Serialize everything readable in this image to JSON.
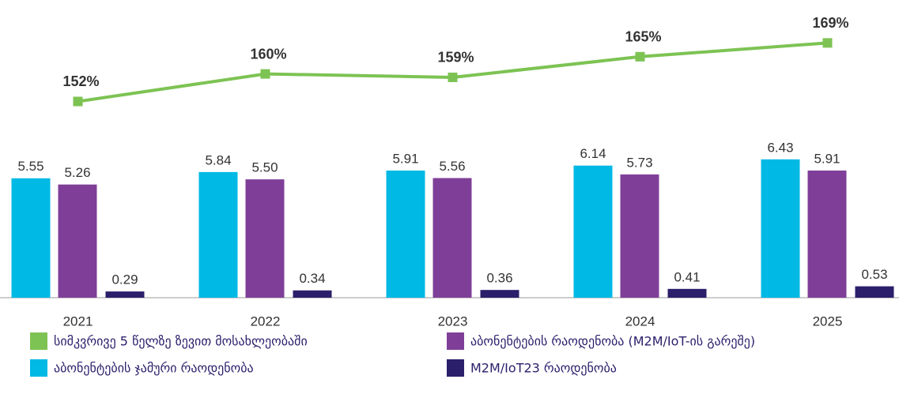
{
  "chart_data": {
    "type": "bar",
    "categories": [
      "2021",
      "2022",
      "2023",
      "2024",
      "2025"
    ],
    "ylim": [
      0,
      12
    ],
    "y2lim": [
      95,
      170
    ],
    "series": [
      {
        "name": "სიმკვრივე 5 წელზე ზევით მოსახლეობაში",
        "type": "line",
        "axis": "y2",
        "color": "#7dc353",
        "values": [
          152,
          160,
          159,
          165,
          169
        ],
        "value_labels": [
          "152%",
          "160%",
          "159%",
          "165%",
          "169%"
        ]
      },
      {
        "name": "აბონენტების ჯამური რაოდენობა",
        "color": "#00b9e4",
        "values": [
          5.55,
          5.84,
          5.91,
          6.14,
          6.43
        ],
        "value_labels": [
          "5.55",
          "5.84",
          "5.91",
          "6.14",
          "6.43"
        ]
      },
      {
        "name": "აბონენტების რაოდენობა (M2M/IoT-ის გარეშე)",
        "color": "#7f3f98",
        "values": [
          5.26,
          5.5,
          5.56,
          5.73,
          5.91
        ],
        "value_labels": [
          "5.26",
          "5.50",
          "5.56",
          "5.73",
          "5.91"
        ]
      },
      {
        "name": "M2M/IoT23 რაოდენობა",
        "color": "#2b1f6b",
        "values": [
          0.29,
          0.34,
          0.36,
          0.41,
          0.53
        ],
        "value_labels": [
          "0.29",
          "0.34",
          "0.36",
          "0.41",
          "0.53"
        ]
      }
    ]
  }
}
